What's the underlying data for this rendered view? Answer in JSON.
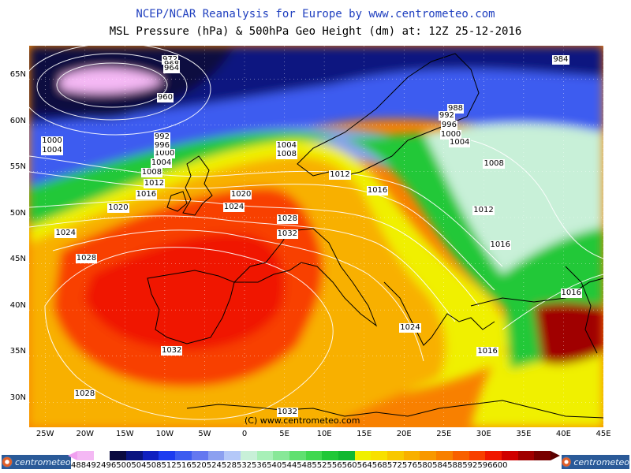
{
  "title": "NCEP/NCAR Reanalysis for Europe by www.centrometeo.com",
  "subtitle": "MSL Pressure (hPa) & 500hPa Geo Height (dm) at: 12Z 25-12-2016",
  "copyright": "(C) www.centrometeo.com",
  "lat_labels": [
    "65N",
    "60N",
    "55N",
    "50N",
    "45N",
    "40N",
    "35N",
    "30N"
  ],
  "lon_labels": [
    "25W",
    "20W",
    "15W",
    "10W",
    "5W",
    "0",
    "5E",
    "10E",
    "15E",
    "20E",
    "25E",
    "30E",
    "35E",
    "40E",
    "45E"
  ],
  "logo_text": "centrometeo",
  "legend": {
    "values": [
      "488",
      "492",
      "496",
      "500",
      "504",
      "508",
      "512",
      "516",
      "520",
      "524",
      "528",
      "532",
      "536",
      "540",
      "544",
      "548",
      "552",
      "556",
      "560",
      "564",
      "568",
      "572",
      "576",
      "580",
      "584",
      "588",
      "592",
      "596",
      "600"
    ],
    "label_string": "488492496500504508512516520524528532536540544548552556560564568572576580584588592596600",
    "colors": [
      "#f4b8f4",
      "#ffffff",
      "#0a0a40",
      "#0a1480",
      "#1020c0",
      "#1c3cf0",
      "#3c5cf0",
      "#6478f0",
      "#8ca0f0",
      "#b4c8f8",
      "#c8f0d8",
      "#a8f0b8",
      "#88e898",
      "#60e070",
      "#40d850",
      "#20c838",
      "#10b830",
      "#f0f000",
      "#f8e000",
      "#f8c800",
      "#f8b000",
      "#f89800",
      "#f88000",
      "#f86000",
      "#f84000",
      "#f01800",
      "#d00000",
      "#a00000",
      "#780000"
    ]
  },
  "isobars": [
    {
      "label": "972",
      "lon": -9.2,
      "lat": 67.0
    },
    {
      "label": "968",
      "lon": -9.0,
      "lat": 66.5
    },
    {
      "label": "964",
      "lon": -9.0,
      "lat": 66.0
    },
    {
      "label": "960",
      "lon": -9.8,
      "lat": 62.9
    },
    {
      "label": "988",
      "lon": 26.6,
      "lat": 61.7
    },
    {
      "label": "992",
      "lon": 25.5,
      "lat": 60.9
    },
    {
      "label": "996",
      "lon": 25.8,
      "lat": 59.9
    },
    {
      "label": "1000",
      "lon": 25.7,
      "lat": 58.9
    },
    {
      "label": "1004",
      "lon": 26.8,
      "lat": 58.0
    },
    {
      "label": "984",
      "lon": 39.8,
      "lat": 67.0
    },
    {
      "label": "1004",
      "lon": 5.1,
      "lat": 57.7
    },
    {
      "label": "1008",
      "lon": 5.1,
      "lat": 56.7
    },
    {
      "label": "1008",
      "lon": 31.1,
      "lat": 55.7
    },
    {
      "label": "1012",
      "lon": 11.8,
      "lat": 54.5
    },
    {
      "label": "1016",
      "lon": 16.5,
      "lat": 52.8
    },
    {
      "label": "1012",
      "lon": 29.8,
      "lat": 50.7
    },
    {
      "label": "1016",
      "lon": 31.9,
      "lat": 46.9
    },
    {
      "label": "1016",
      "lon": 40.8,
      "lat": 41.7
    },
    {
      "label": "1016",
      "lon": 30.3,
      "lat": 35.4
    },
    {
      "label": "1024",
      "lon": 20.6,
      "lat": 38.0
    },
    {
      "label": "1020",
      "lon": -0.6,
      "lat": 52.4
    },
    {
      "label": "1024",
      "lon": -1.5,
      "lat": 51.0
    },
    {
      "label": "1028",
      "lon": 5.2,
      "lat": 49.7
    },
    {
      "label": "1032",
      "lon": 5.2,
      "lat": 48.1
    },
    {
      "label": "1032",
      "lon": -9.3,
      "lat": 35.5
    },
    {
      "label": "1032",
      "lon": 5.2,
      "lat": 28.8
    },
    {
      "label": "1028",
      "lon": -20.2,
      "lat": 30.8
    },
    {
      "label": "1028",
      "lon": -20.0,
      "lat": 45.5
    },
    {
      "label": "1024",
      "lon": -22.6,
      "lat": 48.2
    },
    {
      "label": "1020",
      "lon": -16.0,
      "lat": 50.9
    },
    {
      "label": "1016",
      "lon": -12.5,
      "lat": 52.4
    },
    {
      "label": "1012",
      "lon": -11.5,
      "lat": 53.6
    },
    {
      "label": "1008",
      "lon": -11.8,
      "lat": 54.8
    },
    {
      "label": "1004",
      "lon": -10.6,
      "lat": 55.8
    },
    {
      "label": "1000",
      "lon": -10.2,
      "lat": 56.8
    },
    {
      "label": "996",
      "lon": -10.2,
      "lat": 57.7
    },
    {
      "label": "992",
      "lon": -10.2,
      "lat": 58.6
    },
    {
      "label": "1000",
      "lon": -24.3,
      "lat": 58.2
    },
    {
      "label": "1004",
      "lon": -24.3,
      "lat": 57.2
    }
  ]
}
